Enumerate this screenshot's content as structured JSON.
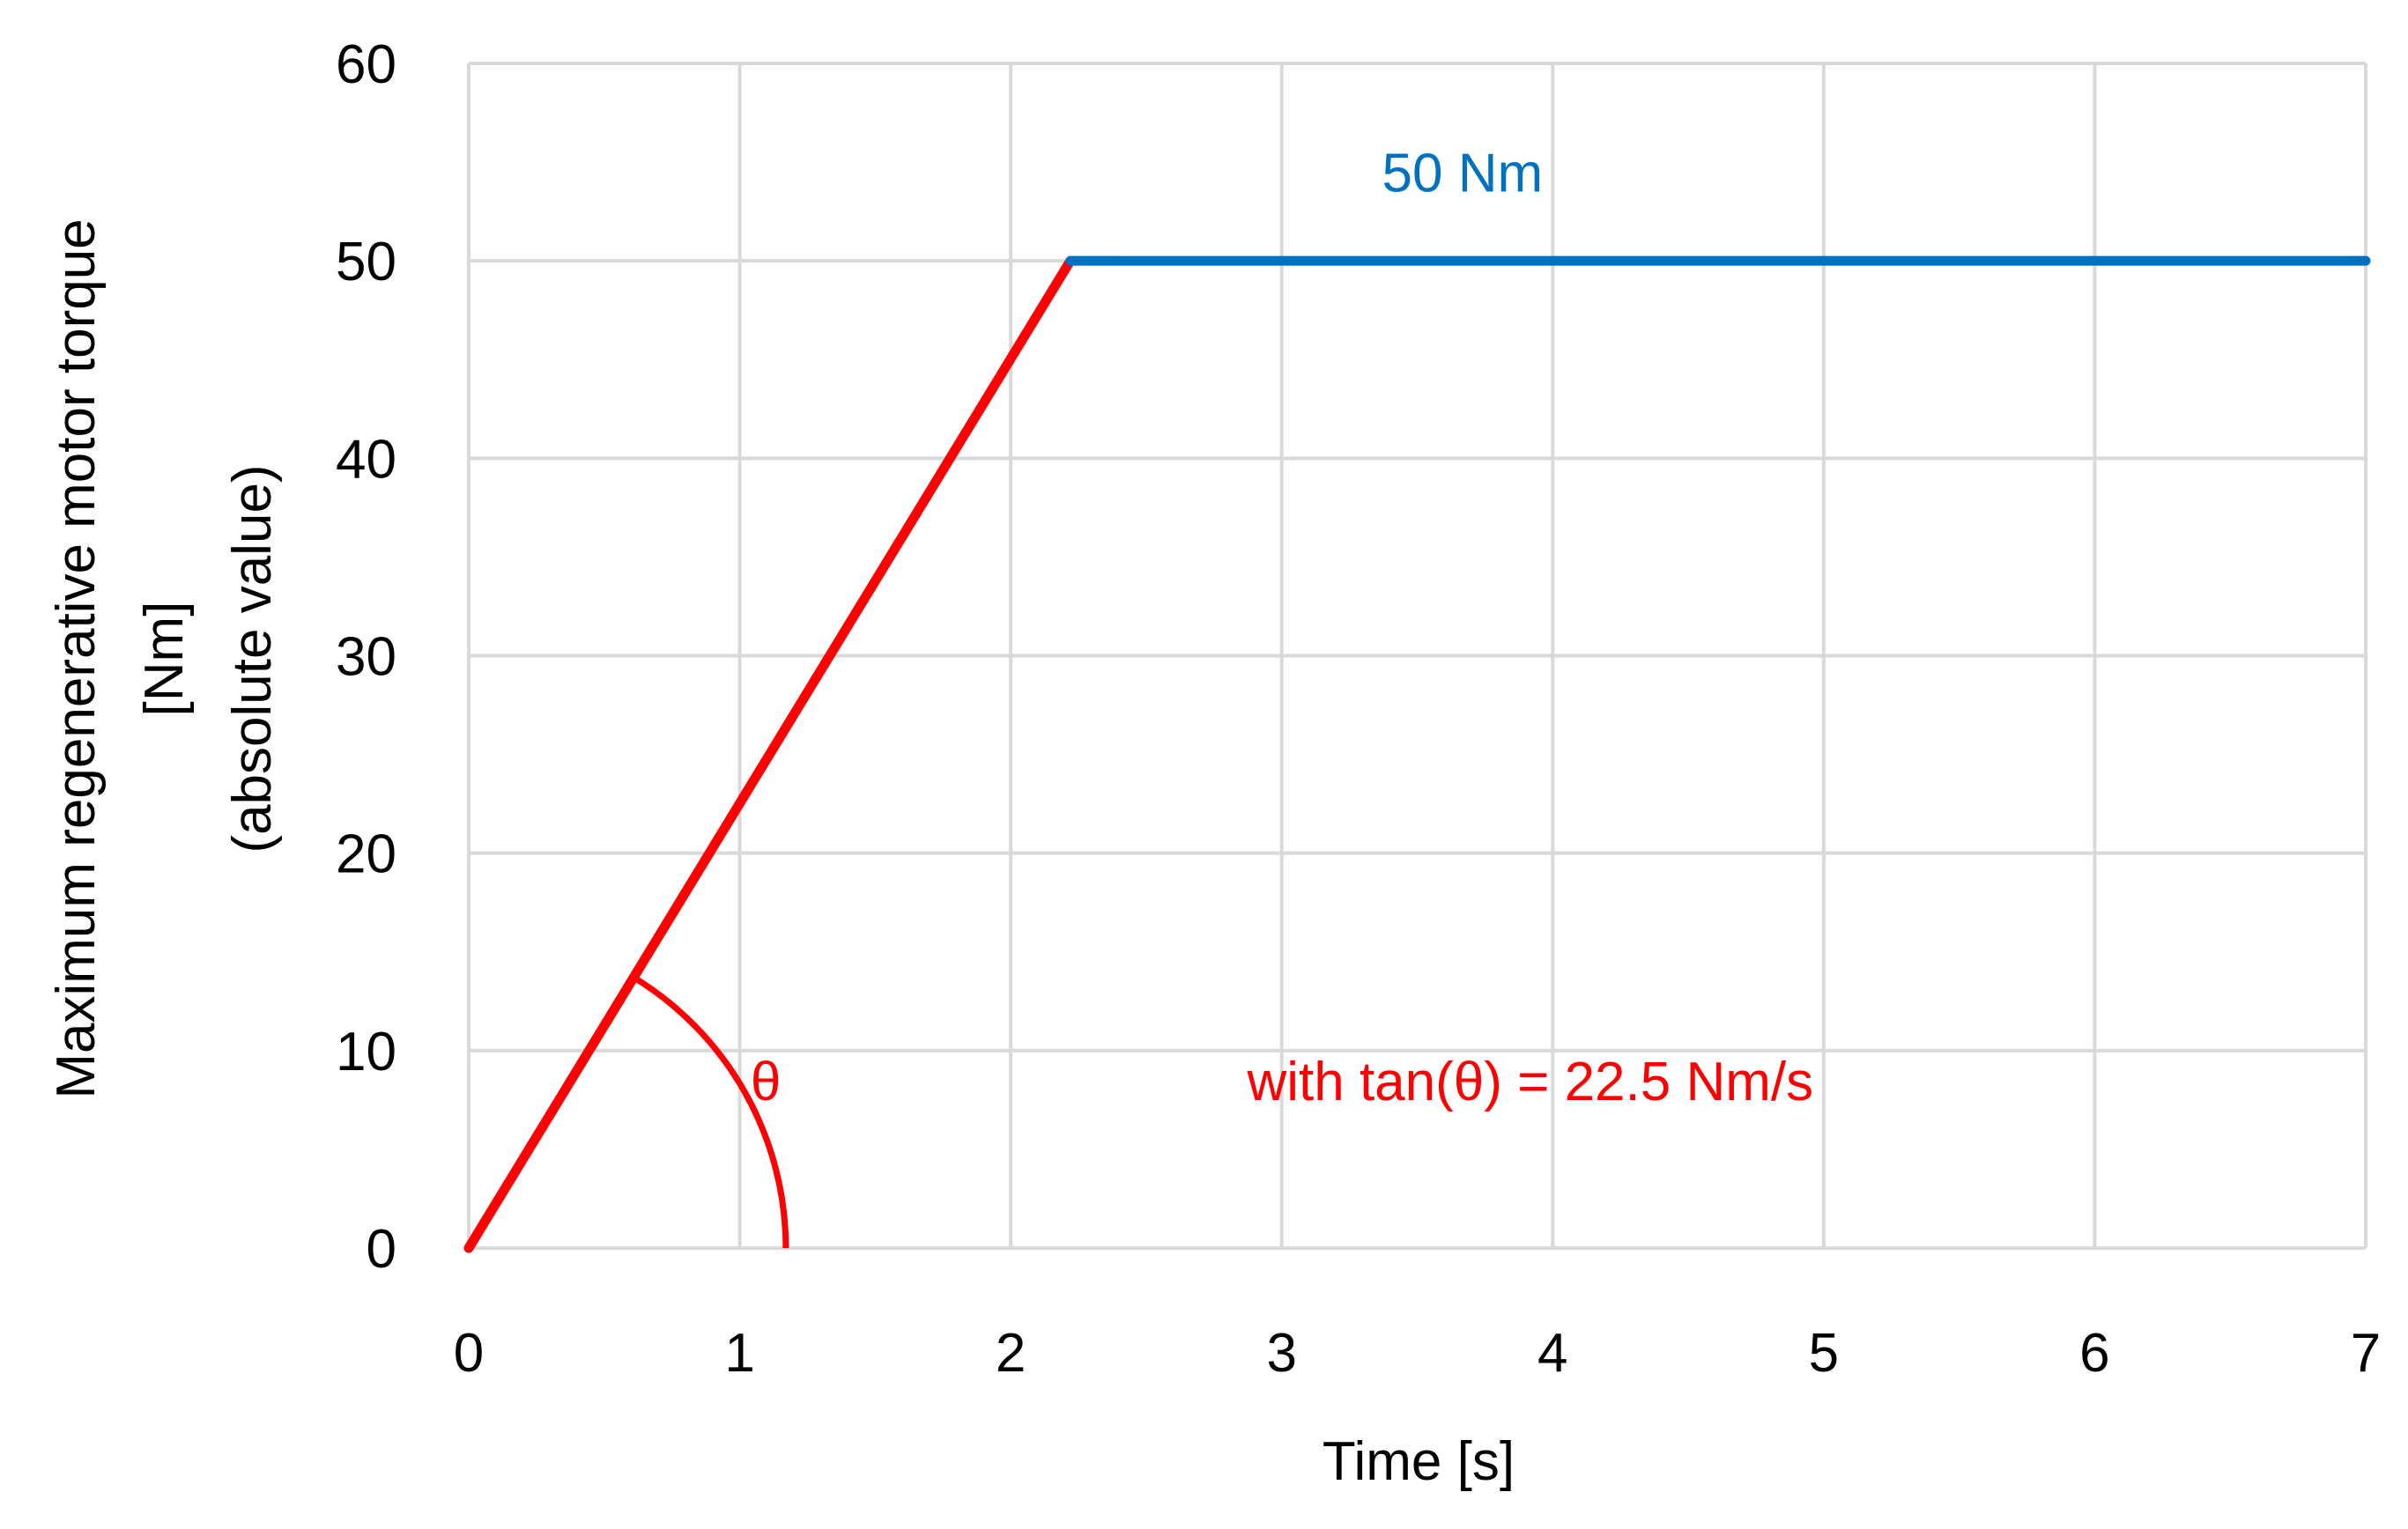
{
  "chart_data": {
    "type": "line",
    "title": "",
    "xlabel": "Time [s]",
    "ylabel_lines": [
      "Maximum regenerative motor torque",
      "[Nm]",
      "(absolute value)"
    ],
    "xlim": [
      0,
      7
    ],
    "ylim": [
      0,
      60
    ],
    "xticks": [
      0,
      1,
      2,
      3,
      4,
      5,
      6,
      7
    ],
    "yticks": [
      0,
      10,
      20,
      30,
      40,
      50,
      60
    ],
    "xtick_labels": [
      "0",
      "1",
      "2",
      "3",
      "4",
      "5",
      "6",
      "7"
    ],
    "ytick_labels": [
      "0",
      "10",
      "20",
      "30",
      "40",
      "50",
      "60"
    ],
    "grid": true,
    "series": [
      {
        "x": [
          0,
          2.22
        ],
        "y": [
          0,
          50
        ],
        "color": "#ff0000"
      },
      {
        "x": [
          2.22,
          7
        ],
        "y": [
          50,
          50
        ],
        "color": "#0070c0"
      }
    ],
    "angle_arc": {
      "center": [
        0,
        0
      ],
      "radius_data_x": 1.17,
      "color": "#ff0000"
    },
    "annotations": [
      {
        "id": "level",
        "text": "50 Nm",
        "x": 3.5,
        "y": 53.5,
        "color": "#0070c0"
      },
      {
        "id": "theta",
        "text": "θ",
        "x": 1.17,
        "y": 7.5,
        "color": "#ff0000"
      },
      {
        "id": "slope",
        "text": "with tan(θ) = 22.5 Nm/s",
        "x": 3.1,
        "y": 7.5,
        "color": "#ff0000"
      }
    ]
  }
}
